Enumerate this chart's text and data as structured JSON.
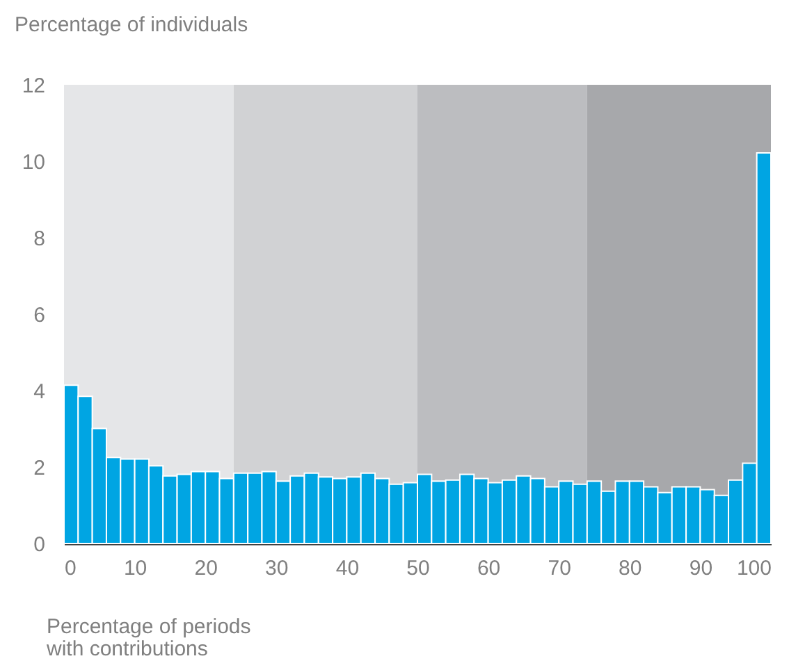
{
  "chart_data": {
    "type": "histogram",
    "ylabel": "Percentage of individuals",
    "xlabel": "Percentage of periods with contributions",
    "bins": [
      0,
      2,
      4,
      6,
      8,
      10,
      12,
      14,
      16,
      18,
      20,
      22,
      24,
      26,
      28,
      30,
      32,
      34,
      36,
      38,
      40,
      42,
      44,
      46,
      48,
      50,
      52,
      54,
      56,
      58,
      60,
      62,
      64,
      66,
      68,
      70,
      72,
      74,
      76,
      78,
      80,
      82,
      84,
      86,
      88,
      90,
      92,
      94,
      96,
      98,
      100
    ],
    "values": [
      4.14,
      3.85,
      3.01,
      2.25,
      2.21,
      2.21,
      2.03,
      1.77,
      1.81,
      1.88,
      1.88,
      1.7,
      1.84,
      1.84,
      1.88,
      1.63,
      1.77,
      1.84,
      1.74,
      1.7,
      1.74,
      1.84,
      1.7,
      1.55,
      1.59,
      1.81,
      1.63,
      1.66,
      1.81,
      1.7,
      1.59,
      1.66,
      1.77,
      1.7,
      1.48,
      1.63,
      1.55,
      1.63,
      1.37,
      1.63,
      1.63,
      1.48,
      1.33,
      1.48,
      1.48,
      1.41,
      1.26,
      1.66,
      2.1,
      10.22
    ],
    "color": "#00a5e3",
    "xlim": [
      0,
      100
    ],
    "xticks": [
      0,
      10,
      20,
      30,
      40,
      50,
      60,
      70,
      80,
      90,
      100
    ],
    "ylim": [
      0,
      12
    ],
    "yticks": [
      0,
      2,
      4,
      6,
      8,
      10,
      12
    ],
    "bands": [
      {
        "axis": "x",
        "from": 0,
        "to": 24,
        "color": "#e5e6e8"
      },
      {
        "axis": "x",
        "from": 24,
        "to": 50,
        "color": "#d1d2d4"
      },
      {
        "axis": "x",
        "from": 50,
        "to": 74,
        "color": "#bcbdc0"
      },
      {
        "axis": "x",
        "from": 74,
        "to": 100,
        "color": "#a7a8ab"
      }
    ],
    "grid": false
  }
}
